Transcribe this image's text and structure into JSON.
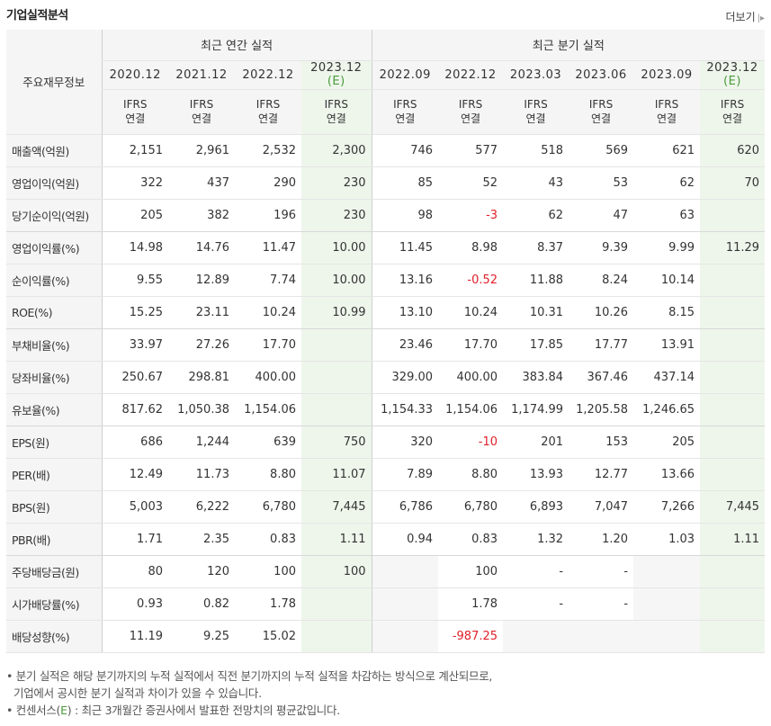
{
  "section_title": "기업실적분석",
  "more_label": "더보기",
  "header": {
    "row_label": "주요재무정보",
    "annual_group": "최근 연간 실적",
    "quarter_group": "최근 분기 실적",
    "annual_periods": [
      "2020.12",
      "2021.12",
      "2022.12",
      "2023.12"
    ],
    "quarter_periods": [
      "2022.09",
      "2022.12",
      "2023.03",
      "2023.06",
      "2023.09",
      "2023.12"
    ],
    "estimate_mark": "(E)",
    "ifrs": "IFRS",
    "consolidated": "연결"
  },
  "rows": [
    {
      "label": "매출액(억원)",
      "annual": [
        "2,151",
        "2,961",
        "2,532",
        "2,300"
      ],
      "quarter": [
        "746",
        "577",
        "518",
        "569",
        "621",
        "620"
      ]
    },
    {
      "label": "영업이익(억원)",
      "annual": [
        "322",
        "437",
        "290",
        "230"
      ],
      "quarter": [
        "85",
        "52",
        "43",
        "53",
        "62",
        "70"
      ]
    },
    {
      "label": "당기순이익(억원)",
      "annual": [
        "205",
        "382",
        "196",
        "230"
      ],
      "quarter": [
        "98",
        "-3",
        "62",
        "47",
        "63",
        ""
      ]
    },
    {
      "label": "영업이익률(%)",
      "annual": [
        "14.98",
        "14.76",
        "11.47",
        "10.00"
      ],
      "quarter": [
        "11.45",
        "8.98",
        "8.37",
        "9.39",
        "9.99",
        "11.29"
      ]
    },
    {
      "label": "순이익률(%)",
      "annual": [
        "9.55",
        "12.89",
        "7.74",
        "10.00"
      ],
      "quarter": [
        "13.16",
        "-0.52",
        "11.88",
        "8.24",
        "10.14",
        ""
      ]
    },
    {
      "label": "ROE(%)",
      "annual": [
        "15.25",
        "23.11",
        "10.24",
        "10.99"
      ],
      "quarter": [
        "13.10",
        "10.24",
        "10.31",
        "10.26",
        "8.15",
        ""
      ]
    },
    {
      "label": "부채비율(%)",
      "annual": [
        "33.97",
        "27.26",
        "17.70",
        ""
      ],
      "quarter": [
        "23.46",
        "17.70",
        "17.85",
        "17.77",
        "13.91",
        ""
      ]
    },
    {
      "label": "당좌비율(%)",
      "annual": [
        "250.67",
        "298.81",
        "400.00",
        ""
      ],
      "quarter": [
        "329.00",
        "400.00",
        "383.84",
        "367.46",
        "437.14",
        ""
      ]
    },
    {
      "label": "유보율(%)",
      "annual": [
        "817.62",
        "1,050.38",
        "1,154.06",
        ""
      ],
      "quarter": [
        "1,154.33",
        "1,154.06",
        "1,174.99",
        "1,205.58",
        "1,246.65",
        ""
      ]
    },
    {
      "label": "EPS(원)",
      "annual": [
        "686",
        "1,244",
        "639",
        "750"
      ],
      "quarter": [
        "320",
        "-10",
        "201",
        "153",
        "205",
        ""
      ]
    },
    {
      "label": "PER(배)",
      "annual": [
        "12.49",
        "11.73",
        "8.80",
        "11.07"
      ],
      "quarter": [
        "7.89",
        "8.80",
        "13.93",
        "12.77",
        "13.66",
        ""
      ]
    },
    {
      "label": "BPS(원)",
      "annual": [
        "5,003",
        "6,222",
        "6,780",
        "7,445"
      ],
      "quarter": [
        "6,786",
        "6,780",
        "6,893",
        "7,047",
        "7,266",
        "7,445"
      ]
    },
    {
      "label": "PBR(배)",
      "annual": [
        "1.71",
        "2.35",
        "0.83",
        "1.11"
      ],
      "quarter": [
        "0.94",
        "0.83",
        "1.32",
        "1.20",
        "1.03",
        "1.11"
      ]
    },
    {
      "label": "주당배당금(원)",
      "annual": [
        "80",
        "120",
        "100",
        "100"
      ],
      "quarter": [
        "",
        "100",
        "-",
        "-",
        "",
        ""
      ]
    },
    {
      "label": "시가배당률(%)",
      "annual": [
        "0.93",
        "0.82",
        "1.78",
        ""
      ],
      "quarter": [
        "",
        "1.78",
        "-",
        "-",
        "",
        ""
      ]
    },
    {
      "label": "배당성향(%)",
      "annual": [
        "11.19",
        "9.25",
        "15.02",
        ""
      ],
      "quarter": [
        "",
        "-987.25",
        "",
        "",
        "",
        ""
      ]
    }
  ],
  "notes": {
    "line1": "분기 실적은 해당 분기까지의 누적 실적에서 직전 분기까지의 누적 실적을 차감하는 방식으로 계산되므로,",
    "line2": "기업에서 공시한 분기 실적과 차이가 있을 수 있습니다.",
    "line3_prefix": "컨센서스(",
    "line3_mark": "E",
    "line3_suffix": ") : 최근 3개월간 증권사에서 발표한 전망치의 평균값입니다."
  },
  "colors": {
    "ifrs_orange": "#e07010",
    "estimate_green": "#4a9a3a",
    "estimate_bg": "#eef6ec",
    "negative_red": "#e0202a",
    "header_bg": "#f5f5f5"
  }
}
